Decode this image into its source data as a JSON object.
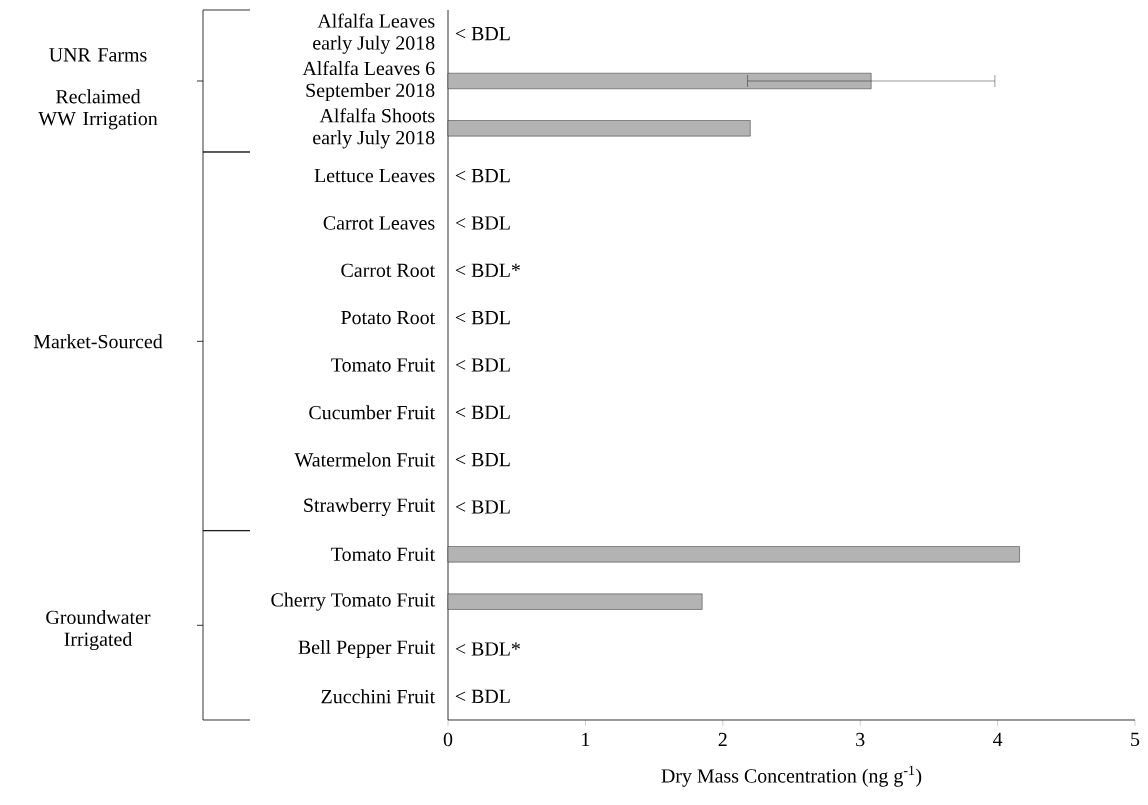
{
  "chart_data": {
    "type": "bar",
    "orientation": "horizontal",
    "categories": [
      "Alfalfa Leaves early July 2018",
      "Alfalfa Leaves 6 September 2018",
      "Alfalfa Shoots early July 2018",
      "Lettuce Leaves",
      "Carrot Leaves",
      "Carrot Root",
      "Potato Root",
      "Tomato Fruit",
      "Cucumber Fruit",
      "Watermelon Fruit",
      "Strawberry Fruit",
      "Tomato Fruit",
      "Cherry Tomato Fruit",
      "Bell Pepper Fruit",
      "Zucchini Fruit"
    ],
    "values": [
      null,
      3.08,
      2.2,
      null,
      null,
      null,
      null,
      null,
      null,
      null,
      null,
      4.16,
      1.85,
      null,
      null
    ],
    "errors": [
      null,
      0.9,
      null,
      null,
      null,
      null,
      null,
      null,
      null,
      null,
      null,
      null,
      null,
      null,
      null
    ],
    "value_labels": [
      "< BDL",
      null,
      null,
      "< BDL",
      "< BDL",
      "< BDL*",
      "< BDL",
      "< BDL",
      "< BDL",
      "< BDL",
      "< BDL",
      null,
      null,
      "< BDL*",
      "< BDL"
    ],
    "color": "#b3b3b3",
    "xlim": [
      0,
      5
    ],
    "xticks": [
      0,
      1,
      2,
      3,
      4,
      5
    ],
    "xlabel": "Dry Mass Concentration (ng g$^{-1}$)",
    "annotations": [
      "UNR Farms",
      "Reclaimed WW Irrigation",
      "Market-Sourced",
      "Groundwater Irrigated"
    ]
  }
}
